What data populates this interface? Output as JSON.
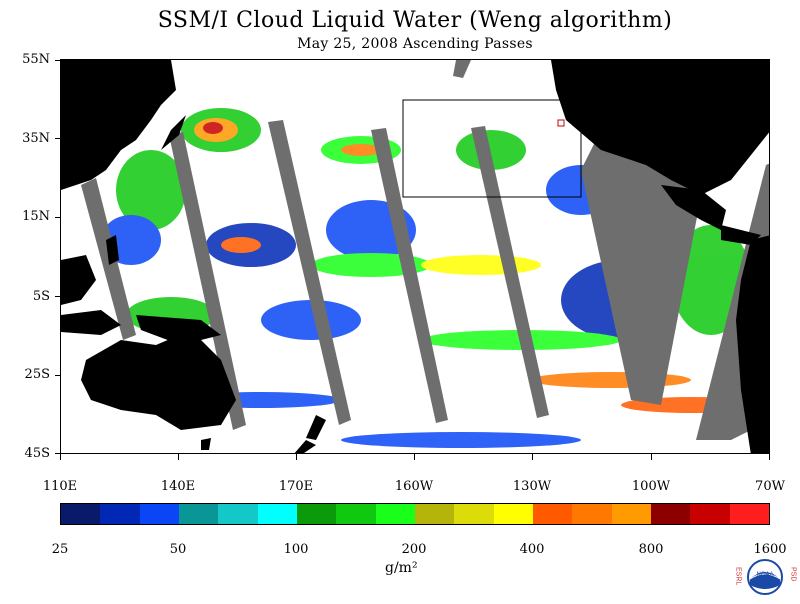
{
  "header": {
    "title": "SSM/I Cloud Liquid Water (Weng algorithm)",
    "subtitle": "May 25, 2008  Ascending Passes"
  },
  "map": {
    "lat_labels": [
      "55N",
      "35N",
      "15N",
      "5S",
      "25S",
      "45S"
    ],
    "lon_labels": [
      "110E",
      "140E",
      "170E",
      "160W",
      "130W",
      "100W",
      "70W"
    ],
    "colors": {
      "land": "#000000",
      "no_data_swath": "#6e6e6e",
      "ocean_clear": "#ffffff"
    }
  },
  "colorbar": {
    "colors": [
      "#0a1a6b",
      "#0028b4",
      "#0a46f5",
      "#0a9696",
      "#14c8c8",
      "#00ffff",
      "#0a9a0a",
      "#10c810",
      "#19ff19",
      "#b4b40a",
      "#dcdc0a",
      "#ffff00",
      "#ff5a00",
      "#ff7800",
      "#ff9a00",
      "#8c0000",
      "#c80000",
      "#ff1e1e"
    ],
    "tick_labels": [
      "25",
      "50",
      "100",
      "200",
      "400",
      "800",
      "1600"
    ],
    "unit": "g/m²"
  },
  "logo": {
    "left_letters": "ESRL",
    "right_letters": "PSD",
    "center_text": "NOAA"
  }
}
